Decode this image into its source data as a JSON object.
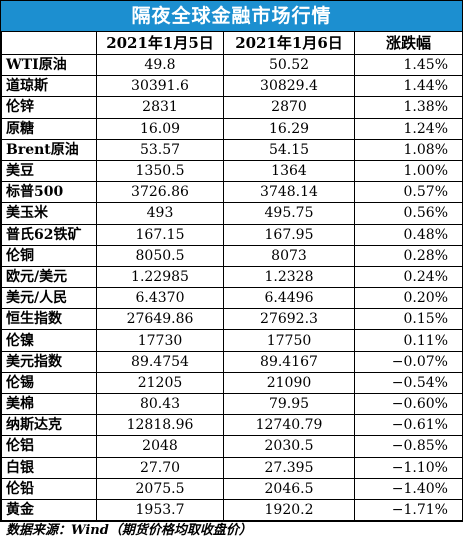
{
  "title": "隔夜全球金融市场行情",
  "headers": [
    "",
    "2021年1月5日",
    "2021年1月6日",
    "涨跌幅"
  ],
  "rows": [
    {
      "name": "WTI原油",
      "d1": "49.8",
      "d2": "50.52",
      "chg": "1.45%"
    },
    {
      "name": "道琼斯",
      "d1": "30391.6",
      "d2": "30829.4",
      "chg": "1.44%"
    },
    {
      "name": "伦锌",
      "d1": "2831",
      "d2": "2870",
      "chg": "1.38%"
    },
    {
      "name": "原糖",
      "d1": "16.09",
      "d2": "16.29",
      "chg": "1.24%"
    },
    {
      "name": "Brent原油",
      "d1": "53.57",
      "d2": "54.15",
      "chg": "1.08%"
    },
    {
      "name": "美豆",
      "d1": "1350.5",
      "d2": "1364",
      "chg": "1.00%"
    },
    {
      "name": "标普500",
      "d1": "3726.86",
      "d2": "3748.14",
      "chg": "0.57%"
    },
    {
      "name": "美玉米",
      "d1": "493",
      "d2": "495.75",
      "chg": "0.56%"
    },
    {
      "name": "普氏62铁矿",
      "d1": "167.15",
      "d2": "167.95",
      "chg": "0.48%"
    },
    {
      "name": "伦铜",
      "d1": "8050.5",
      "d2": "8073",
      "chg": "0.28%"
    },
    {
      "name": "欧元/美元",
      "d1": "1.22985",
      "d2": "1.2328",
      "chg": "0.24%"
    },
    {
      "name": "美元/人民",
      "d1": "6.4370",
      "d2": "6.4496",
      "chg": "0.20%"
    },
    {
      "name": "恒生指数",
      "d1": "27649.86",
      "d2": "27692.3",
      "chg": "0.15%"
    },
    {
      "name": "伦镍",
      "d1": "17730",
      "d2": "17750",
      "chg": "0.11%"
    },
    {
      "name": "美元指数",
      "d1": "89.4754",
      "d2": "89.4167",
      "chg": "−0.07%"
    },
    {
      "name": "伦锡",
      "d1": "21205",
      "d2": "21090",
      "chg": "−0.54%"
    },
    {
      "name": "美棉",
      "d1": "80.43",
      "d2": "79.95",
      "chg": "−0.60%"
    },
    {
      "name": "纳斯达克",
      "d1": "12818.96",
      "d2": "12740.79",
      "chg": "−0.61%"
    },
    {
      "name": "伦铝",
      "d1": "2048",
      "d2": "2030.5",
      "chg": "−0.85%"
    },
    {
      "name": "白银",
      "d1": "27.70",
      "d2": "27.395",
      "chg": "−1.10%"
    },
    {
      "name": "伦铅",
      "d1": "2075.5",
      "d2": "2046.5",
      "chg": "−1.40%"
    },
    {
      "name": "黄金",
      "d1": "1953.7",
      "d2": "1920.2",
      "chg": "−1.71%"
    }
  ],
  "source": "数据来源：Wind（期货价格均取收盘价）"
}
